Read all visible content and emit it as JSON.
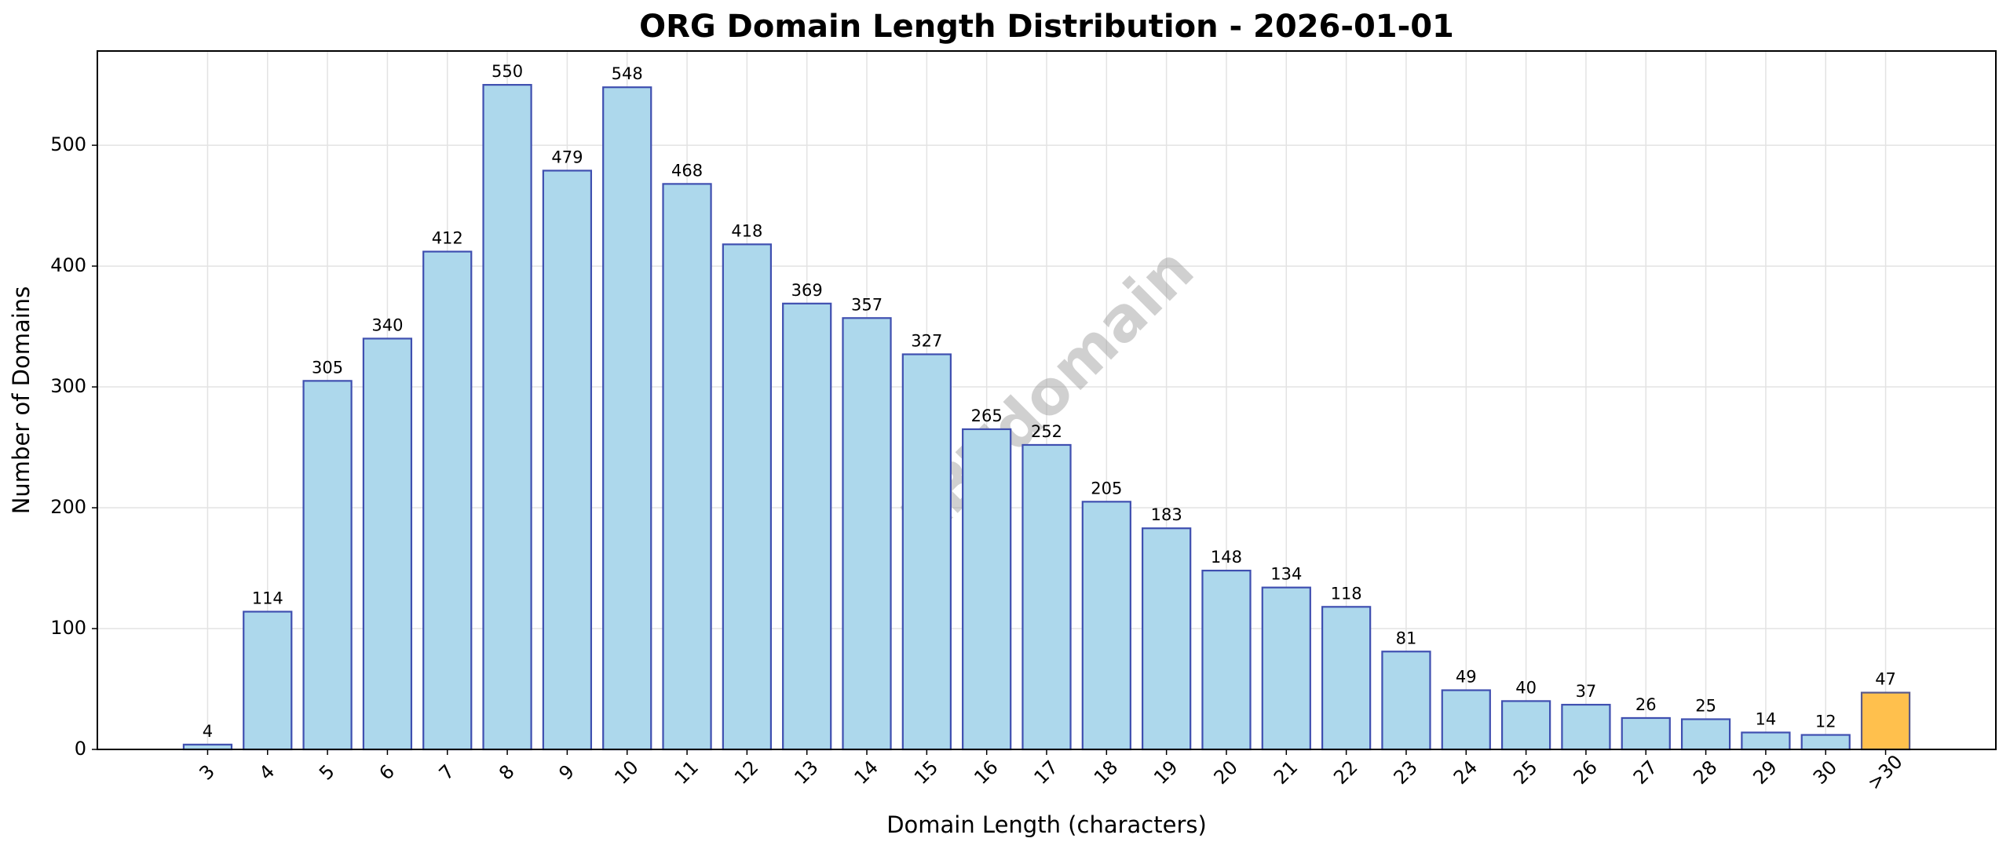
{
  "chart_data": {
    "type": "bar",
    "title": "ORG Domain Length Distribution - 2026-01-01",
    "x_label": "Domain Length (characters)",
    "y_label": "Number of Domains",
    "watermark": "ABTdomain",
    "categories": [
      "3",
      "4",
      "5",
      "6",
      "7",
      "8",
      "9",
      "10",
      "11",
      "12",
      "13",
      "14",
      "15",
      "16",
      "17",
      "18",
      "19",
      "20",
      "21",
      "22",
      "23",
      "24",
      "25",
      "26",
      "27",
      "28",
      "29",
      "30",
      ">30"
    ],
    "values": [
      4,
      114,
      305,
      340,
      412,
      550,
      479,
      548,
      468,
      418,
      369,
      357,
      327,
      265,
      252,
      205,
      183,
      148,
      134,
      118,
      81,
      49,
      40,
      37,
      26,
      25,
      14,
      12,
      47
    ],
    "color": "#add8ec",
    "edge_color": "#3f4fb0",
    "highlight_category": ">30",
    "highlight_color": "#ffc04d",
    "highlight_edge_color": "#5a5a8a",
    "ylim": [
      0,
      578
    ],
    "yticks": [
      0,
      100,
      200,
      300,
      400,
      500
    ],
    "grid": true
  }
}
